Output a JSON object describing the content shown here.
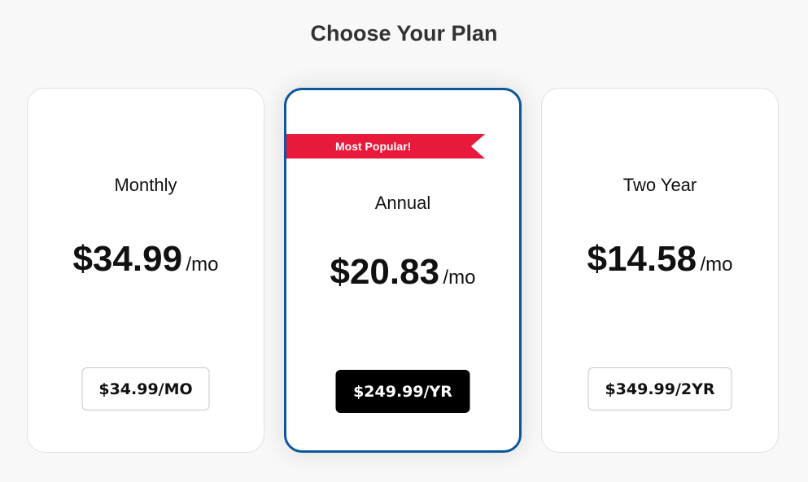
{
  "title": "Choose Your Plan",
  "colors": {
    "accent": "#0a579e",
    "ribbon": "#e8193a"
  },
  "plans": [
    {
      "name": "Monthly",
      "price": "$34.99",
      "per": "/mo",
      "button": "$34.99/MO"
    },
    {
      "name": "Annual",
      "badge": "Most Popular!",
      "price": "$20.83",
      "per": "/mo",
      "button": "$249.99/YR"
    },
    {
      "name": "Two Year",
      "price": "$14.58",
      "per": "/mo",
      "button": "$349.99/2YR"
    }
  ]
}
